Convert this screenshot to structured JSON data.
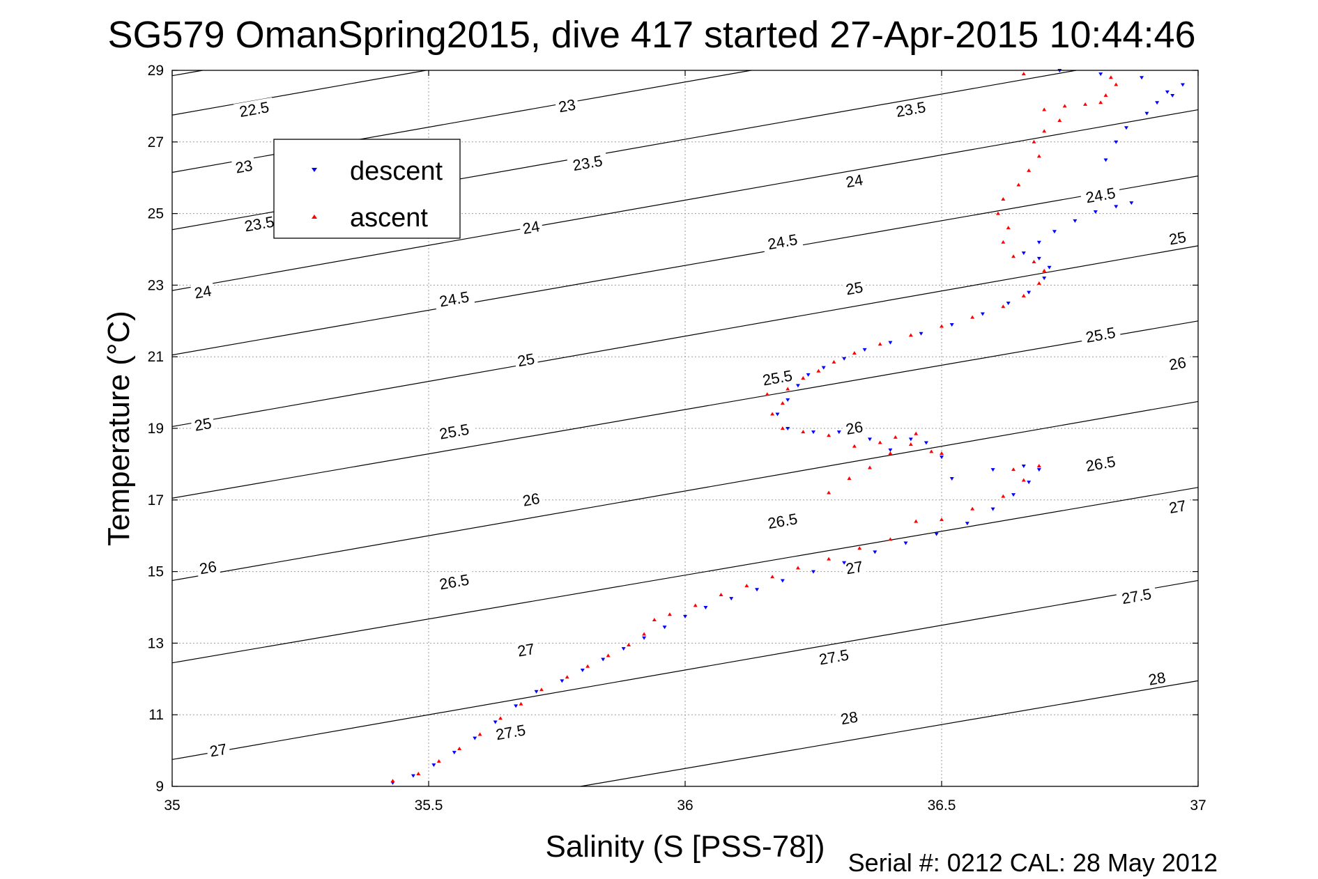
{
  "chart_data": {
    "type": "scatter",
    "title": "SG579 OmanSpring2015, dive 417 started 27-Apr-2015 10:44:46",
    "xlabel": "Salinity (S [PSS-78])",
    "ylabel": "Temperature (°C)",
    "footer": "Serial #: 0212  CAL: 28 May 2012",
    "xlim": [
      35,
      37
    ],
    "ylim": [
      9,
      29
    ],
    "xticks": [
      35,
      35.5,
      36,
      36.5,
      37
    ],
    "xtick_labels": [
      "35",
      "35.5",
      "36",
      "36.5",
      "37"
    ],
    "yticks": [
      9,
      11,
      13,
      15,
      17,
      19,
      21,
      23,
      25,
      27,
      29
    ],
    "ytick_labels": [
      "9",
      "11",
      "13",
      "15",
      "17",
      "19",
      "21",
      "23",
      "25",
      "27",
      "29"
    ],
    "grid": true,
    "legend_position": "top-left",
    "density_contours": {
      "color": "#000000",
      "levels": [
        "22.5",
        "23",
        "23.5",
        "24",
        "24.5",
        "25",
        "25.5",
        "26",
        "26.5",
        "27",
        "27.5",
        "28"
      ],
      "lines": [
        {
          "level": 22.5,
          "t_at_35": 28.85,
          "t_at_37": 33.9
        },
        {
          "level": 23,
          "t_at_35": 27.75,
          "t_at_37": 32.8
        },
        {
          "level": 23.5,
          "t_at_35": 26.15,
          "t_at_37": 31.2
        },
        {
          "level": 24,
          "t_at_35": 24.55,
          "t_at_37": 29.6
        },
        {
          "level": 24.5,
          "t_at_35": 22.85,
          "t_at_37": 27.9
        },
        {
          "level": 25,
          "t_at_35": 21.05,
          "t_at_37": 26.05
        },
        {
          "level": 25.5,
          "t_at_35": 19.05,
          "t_at_37": 24.1
        },
        {
          "level": 26,
          "t_at_35": 17.05,
          "t_at_37": 22.0
        },
        {
          "level": 26.5,
          "t_at_35": 14.75,
          "t_at_37": 19.75
        },
        {
          "level": 27,
          "t_at_35": 12.45,
          "t_at_37": 17.35
        },
        {
          "level": 27.5,
          "t_at_35": 9.75,
          "t_at_37": 14.75
        },
        {
          "level": 28,
          "t_at_35": 7.05,
          "t_at_37": 11.95
        }
      ],
      "labels": [
        {
          "text": "22.5",
          "s": 35.16,
          "t": 27.9
        },
        {
          "text": "23",
          "s": 35.14,
          "t": 26.3
        },
        {
          "text": "23.5",
          "s": 35.17,
          "t": 24.7
        },
        {
          "text": "24",
          "s": 35.06,
          "t": 22.8
        },
        {
          "text": "25",
          "s": 35.06,
          "t": 19.1
        },
        {
          "text": "26",
          "s": 35.07,
          "t": 15.1
        },
        {
          "text": "27",
          "s": 35.09,
          "t": 10.0
        },
        {
          "text": "23",
          "s": 35.77,
          "t": 28.0
        },
        {
          "text": "23.5",
          "s": 35.81,
          "t": 26.4
        },
        {
          "text": "24",
          "s": 35.7,
          "t": 24.6
        },
        {
          "text": "24.5",
          "s": 35.55,
          "t": 22.6
        },
        {
          "text": "25",
          "s": 35.69,
          "t": 20.9
        },
        {
          "text": "25.5",
          "s": 35.55,
          "t": 18.9
        },
        {
          "text": "26",
          "s": 35.7,
          "t": 17.0
        },
        {
          "text": "26.5",
          "s": 35.55,
          "t": 14.7
        },
        {
          "text": "27",
          "s": 35.69,
          "t": 12.8
        },
        {
          "text": "27.5",
          "s": 35.66,
          "t": 10.5
        },
        {
          "text": "23.5",
          "s": 36.44,
          "t": 27.9
        },
        {
          "text": "24",
          "s": 36.33,
          "t": 25.9
        },
        {
          "text": "24.5",
          "s": 36.19,
          "t": 24.2
        },
        {
          "text": "25",
          "s": 36.33,
          "t": 22.9
        },
        {
          "text": "25.5",
          "s": 36.18,
          "t": 20.4
        },
        {
          "text": "26",
          "s": 36.33,
          "t": 19.0
        },
        {
          "text": "26.5",
          "s": 36.19,
          "t": 16.4
        },
        {
          "text": "27",
          "s": 36.33,
          "t": 15.1
        },
        {
          "text": "27.5",
          "s": 36.29,
          "t": 12.6
        },
        {
          "text": "28",
          "s": 36.32,
          "t": 10.9
        },
        {
          "text": "24.5",
          "s": 36.81,
          "t": 25.5
        },
        {
          "text": "25",
          "s": 36.96,
          "t": 24.3
        },
        {
          "text": "25.5",
          "s": 36.81,
          "t": 21.6
        },
        {
          "text": "26",
          "s": 36.96,
          "t": 20.8
        },
        {
          "text": "26.5",
          "s": 36.81,
          "t": 18.0
        },
        {
          "text": "27",
          "s": 36.96,
          "t": 16.8
        },
        {
          "text": "27.5",
          "s": 36.88,
          "t": 14.3
        },
        {
          "text": "28",
          "s": 36.92,
          "t": 12.0
        }
      ]
    },
    "series": [
      {
        "name": "descent",
        "color": "#0000ff",
        "marker": "triangle-down",
        "points": [
          [
            35.43,
            9.1
          ],
          [
            35.47,
            9.3
          ],
          [
            35.51,
            9.6
          ],
          [
            35.55,
            9.95
          ],
          [
            35.59,
            10.35
          ],
          [
            35.63,
            10.8
          ],
          [
            35.67,
            11.25
          ],
          [
            35.71,
            11.65
          ],
          [
            35.76,
            11.95
          ],
          [
            35.8,
            12.25
          ],
          [
            35.84,
            12.55
          ],
          [
            35.88,
            12.85
          ],
          [
            35.92,
            13.15
          ],
          [
            35.96,
            13.45
          ],
          [
            36.0,
            13.75
          ],
          [
            36.04,
            14.0
          ],
          [
            36.09,
            14.25
          ],
          [
            36.14,
            14.5
          ],
          [
            36.19,
            14.75
          ],
          [
            36.25,
            15.0
          ],
          [
            36.31,
            15.25
          ],
          [
            36.37,
            15.55
          ],
          [
            36.43,
            15.8
          ],
          [
            36.49,
            16.05
          ],
          [
            36.55,
            16.35
          ],
          [
            36.6,
            16.75
          ],
          [
            36.64,
            17.15
          ],
          [
            36.67,
            17.5
          ],
          [
            36.69,
            17.85
          ],
          [
            36.66,
            17.95
          ],
          [
            36.6,
            17.85
          ],
          [
            36.52,
            17.6
          ],
          [
            36.5,
            18.2
          ],
          [
            36.47,
            18.6
          ],
          [
            36.44,
            18.7
          ],
          [
            36.4,
            18.4
          ],
          [
            36.36,
            18.7
          ],
          [
            36.3,
            18.9
          ],
          [
            36.25,
            18.9
          ],
          [
            36.2,
            19.0
          ],
          [
            36.18,
            19.4
          ],
          [
            36.2,
            19.8
          ],
          [
            36.22,
            20.2
          ],
          [
            36.24,
            20.5
          ],
          [
            36.27,
            20.7
          ],
          [
            36.31,
            20.95
          ],
          [
            36.35,
            21.2
          ],
          [
            36.4,
            21.4
          ],
          [
            36.46,
            21.65
          ],
          [
            36.52,
            21.9
          ],
          [
            36.58,
            22.2
          ],
          [
            36.63,
            22.5
          ],
          [
            36.67,
            22.8
          ],
          [
            36.7,
            23.2
          ],
          [
            36.71,
            23.5
          ],
          [
            36.69,
            23.75
          ],
          [
            36.66,
            23.9
          ],
          [
            36.69,
            24.2
          ],
          [
            36.72,
            24.5
          ],
          [
            36.76,
            24.8
          ],
          [
            36.8,
            25.05
          ],
          [
            36.84,
            25.2
          ],
          [
            36.87,
            25.3
          ],
          [
            36.82,
            26.5
          ],
          [
            36.84,
            27.0
          ],
          [
            36.86,
            27.4
          ],
          [
            36.9,
            27.8
          ],
          [
            36.92,
            28.1
          ],
          [
            36.94,
            28.4
          ],
          [
            36.97,
            28.6
          ],
          [
            36.89,
            28.8
          ],
          [
            36.95,
            28.3
          ],
          [
            36.81,
            28.9
          ],
          [
            36.73,
            29.0
          ]
        ]
      },
      {
        "name": "ascent",
        "color": "#ff0000",
        "marker": "triangle-up",
        "points": [
          [
            35.43,
            9.15
          ],
          [
            35.48,
            9.35
          ],
          [
            35.52,
            9.7
          ],
          [
            35.56,
            10.05
          ],
          [
            35.6,
            10.45
          ],
          [
            35.64,
            10.9
          ],
          [
            35.68,
            11.3
          ],
          [
            35.72,
            11.7
          ],
          [
            35.77,
            12.05
          ],
          [
            35.81,
            12.35
          ],
          [
            35.85,
            12.65
          ],
          [
            35.89,
            12.95
          ],
          [
            35.92,
            13.25
          ],
          [
            35.94,
            13.65
          ],
          [
            35.97,
            13.8
          ],
          [
            36.02,
            14.05
          ],
          [
            36.07,
            14.35
          ],
          [
            36.12,
            14.6
          ],
          [
            36.17,
            14.85
          ],
          [
            36.22,
            15.1
          ],
          [
            36.28,
            15.35
          ],
          [
            36.34,
            15.65
          ],
          [
            36.4,
            15.9
          ],
          [
            36.45,
            16.4
          ],
          [
            36.5,
            16.45
          ],
          [
            36.56,
            16.75
          ],
          [
            36.62,
            17.1
          ],
          [
            36.66,
            17.55
          ],
          [
            36.69,
            17.95
          ],
          [
            36.64,
            17.85
          ],
          [
            36.28,
            17.2
          ],
          [
            36.32,
            17.6
          ],
          [
            36.36,
            17.9
          ],
          [
            36.4,
            18.3
          ],
          [
            36.44,
            18.55
          ],
          [
            36.48,
            18.35
          ],
          [
            36.5,
            18.3
          ],
          [
            36.45,
            18.85
          ],
          [
            36.41,
            18.75
          ],
          [
            36.38,
            18.6
          ],
          [
            36.33,
            18.5
          ],
          [
            36.28,
            18.8
          ],
          [
            36.23,
            18.9
          ],
          [
            36.19,
            19.0
          ],
          [
            36.17,
            19.4
          ],
          [
            36.19,
            19.7
          ],
          [
            36.16,
            19.95
          ],
          [
            36.2,
            20.1
          ],
          [
            36.23,
            20.4
          ],
          [
            36.26,
            20.6
          ],
          [
            36.29,
            20.85
          ],
          [
            36.33,
            21.1
          ],
          [
            36.38,
            21.35
          ],
          [
            36.44,
            21.6
          ],
          [
            36.5,
            21.85
          ],
          [
            36.56,
            22.1
          ],
          [
            36.62,
            22.4
          ],
          [
            36.66,
            22.7
          ],
          [
            36.69,
            23.05
          ],
          [
            36.7,
            23.4
          ],
          [
            36.68,
            23.65
          ],
          [
            36.64,
            23.8
          ],
          [
            36.62,
            24.2
          ],
          [
            36.63,
            24.6
          ],
          [
            36.61,
            25.0
          ],
          [
            36.62,
            25.4
          ],
          [
            36.65,
            25.8
          ],
          [
            36.67,
            26.2
          ],
          [
            36.69,
            26.6
          ],
          [
            36.68,
            27.0
          ],
          [
            36.7,
            27.3
          ],
          [
            36.73,
            27.6
          ],
          [
            36.7,
            27.9
          ],
          [
            36.74,
            28.0
          ],
          [
            36.78,
            28.05
          ],
          [
            36.81,
            28.1
          ],
          [
            36.82,
            28.3
          ],
          [
            36.84,
            28.6
          ],
          [
            36.83,
            28.8
          ],
          [
            36.66,
            28.9
          ]
        ]
      }
    ]
  },
  "legend": {
    "descent_label": "descent",
    "ascent_label": "ascent"
  }
}
